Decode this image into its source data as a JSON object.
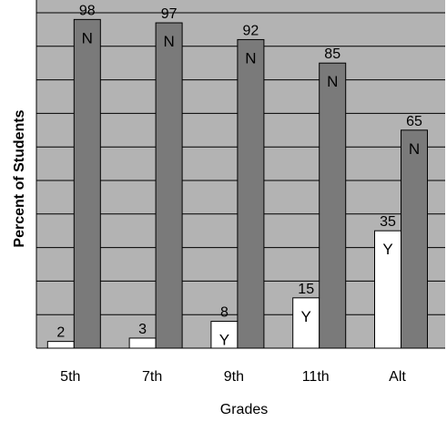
{
  "chart_data": {
    "type": "bar",
    "title": "",
    "xlabel": "Grades",
    "ylabel": "Percent of Students",
    "categories": [
      "5th",
      "7th",
      "9th",
      "11th",
      "Alt"
    ],
    "series": [
      {
        "name": "",
        "letter": "Y",
        "values": [
          2,
          3,
          8,
          15,
          35
        ],
        "color": "#ffffff"
      },
      {
        "name": "",
        "letter": "N",
        "values": [
          98,
          97,
          92,
          85,
          65
        ],
        "color": "#7a7a7a"
      }
    ],
    "inside_labels": {
      "Y": [
        false,
        false,
        true,
        true,
        true
      ],
      "N": [
        true,
        true,
        true,
        true,
        true
      ]
    },
    "ylim": [
      0,
      100
    ],
    "grid": true,
    "legend": "none",
    "plot_background": "#b3b3b3"
  }
}
